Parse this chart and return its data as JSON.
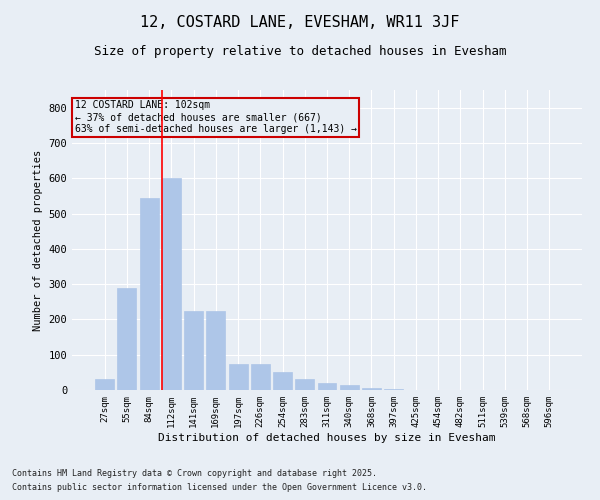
{
  "title": "12, COSTARD LANE, EVESHAM, WR11 3JF",
  "subtitle": "Size of property relative to detached houses in Evesham",
  "xlabel": "Distribution of detached houses by size in Evesham",
  "ylabel": "Number of detached properties",
  "categories": [
    "27sqm",
    "55sqm",
    "84sqm",
    "112sqm",
    "141sqm",
    "169sqm",
    "197sqm",
    "226sqm",
    "254sqm",
    "283sqm",
    "311sqm",
    "340sqm",
    "368sqm",
    "397sqm",
    "425sqm",
    "454sqm",
    "482sqm",
    "511sqm",
    "539sqm",
    "568sqm",
    "596sqm"
  ],
  "values": [
    30,
    290,
    545,
    600,
    225,
    225,
    75,
    75,
    50,
    30,
    20,
    15,
    5,
    3,
    0,
    0,
    0,
    0,
    0,
    0,
    0
  ],
  "bar_color": "#aec6e8",
  "bar_edge_color": "#aec6e8",
  "background_color": "#e8eef5",
  "grid_color": "#ffffff",
  "annotation_box_color": "#cc0000",
  "vline_x_index": 3,
  "annotation_text": "12 COSTARD LANE: 102sqm\n← 37% of detached houses are smaller (667)\n63% of semi-detached houses are larger (1,143) →",
  "ylim": [
    0,
    850
  ],
  "yticks": [
    0,
    100,
    200,
    300,
    400,
    500,
    600,
    700,
    800
  ],
  "footnote1": "Contains HM Land Registry data © Crown copyright and database right 2025.",
  "footnote2": "Contains public sector information licensed under the Open Government Licence v3.0.",
  "title_fontsize": 11,
  "subtitle_fontsize": 9
}
